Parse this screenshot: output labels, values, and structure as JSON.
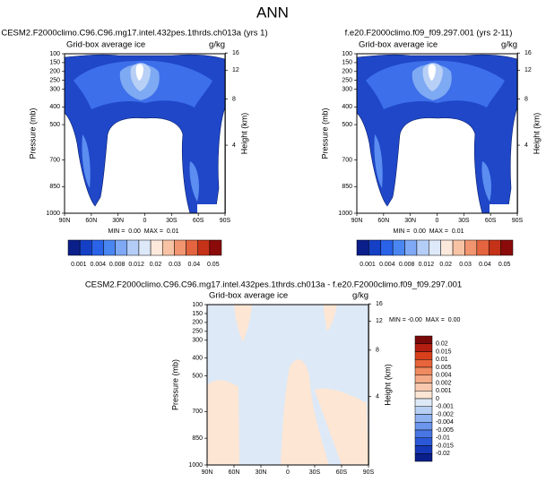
{
  "title": "ANN",
  "chart_data": [
    {
      "type": "contour",
      "title": "CESM2.F2000climo.C96.C96.mg17.intel.432pes.1thrds.ch013a (yrs 1)",
      "subtitle": "Grid-box average ice",
      "units": "g/kg",
      "ylabel": "Pressure (mb)",
      "y2label": "Height (km)",
      "xlim": [
        90,
        -90
      ],
      "xticks": [
        {
          "value": 90,
          "label": "90N"
        },
        {
          "value": 60,
          "label": "60N"
        },
        {
          "value": 30,
          "label": "30N"
        },
        0,
        {
          "value": -30,
          "label": "30S"
        },
        {
          "value": -60,
          "label": "60S"
        },
        {
          "value": -90,
          "label": "90S"
        }
      ],
      "ylim": [
        1000,
        100
      ],
      "yticks": [
        100,
        150,
        200,
        250,
        300,
        400,
        500,
        700,
        850,
        1000
      ],
      "y2lim": [
        0.1,
        16.2
      ],
      "y2ticks": [
        4,
        8,
        12,
        16
      ],
      "stats": "MIN =  0.00  MAX =  0.01",
      "colorbar": {
        "orientation": "horizontal",
        "colors": [
          "#0a1f8a",
          "#1540c6",
          "#2a62e8",
          "#4a86f2",
          "#7fa9f5",
          "#b4cdf7",
          "#dde8f8",
          "#fce9dc",
          "#f8c3a5",
          "#f19570",
          "#e3643f",
          "#c53218",
          "#8b0a0a"
        ],
        "labels": [
          0.001,
          0.004,
          0.008,
          0.012,
          0.02,
          0.03,
          0.04,
          0.05
        ]
      }
    },
    {
      "type": "contour",
      "title": "f.e20.F2000climo.f09_f09.297.001 (yrs 2-11)",
      "subtitle": "Grid-box average ice",
      "units": "g/kg",
      "ylabel": "Pressure (mb)",
      "y2label": "Height (km)",
      "xlim": [
        90,
        -90
      ],
      "xticks": [
        {
          "value": 90,
          "label": "90N"
        },
        {
          "value": 60,
          "label": "60N"
        },
        {
          "value": 30,
          "label": "30N"
        },
        0,
        {
          "value": -30,
          "label": "30S"
        },
        {
          "value": -60,
          "label": "60S"
        },
        {
          "value": -90,
          "label": "90S"
        }
      ],
      "ylim": [
        1000,
        100
      ],
      "yticks": [
        100,
        150,
        200,
        250,
        300,
        400,
        500,
        700,
        850,
        1000
      ],
      "y2lim": [
        0.1,
        16.2
      ],
      "y2ticks": [
        4,
        8,
        12,
        16
      ],
      "stats": "MIN =  0.00  MAX =  0.01",
      "colorbar": {
        "orientation": "horizontal",
        "colors": [
          "#0a1f8a",
          "#1540c6",
          "#2a62e8",
          "#4a86f2",
          "#7fa9f5",
          "#b4cdf7",
          "#dde8f8",
          "#fce9dc",
          "#f8c3a5",
          "#f19570",
          "#e3643f",
          "#c53218",
          "#8b0a0a"
        ],
        "labels": [
          0.001,
          0.004,
          0.008,
          0.012,
          0.02,
          0.03,
          0.04,
          0.05
        ]
      }
    },
    {
      "type": "contour",
      "title": "CESM2.F2000climo.C96.C96.mg17.intel.432pes.1thrds.ch013a - f.e20.F2000climo.f09_f09.297.001",
      "subtitle": "Grid-box average ice",
      "units": "g/kg",
      "ylabel": "Pressure (mb)",
      "y2label": "Height (km)",
      "xlim": [
        90,
        -90
      ],
      "xticks": [
        {
          "value": 90,
          "label": "90N"
        },
        {
          "value": 60,
          "label": "60N"
        },
        {
          "value": 30,
          "label": "30N"
        },
        0,
        {
          "value": -30,
          "label": "30S"
        },
        {
          "value": -60,
          "label": "60S"
        },
        {
          "value": -90,
          "label": "90S"
        }
      ],
      "ylim": [
        1000,
        100
      ],
      "yticks": [
        100,
        150,
        200,
        250,
        300,
        400,
        500,
        700,
        850,
        1000
      ],
      "y2lim": [
        0.1,
        16.2
      ],
      "y2ticks": [
        4,
        8,
        12,
        16
      ],
      "stats": "MIN = -0.00  MAX =  0.00",
      "colorbar": {
        "orientation": "vertical",
        "colors": [
          "#7a0a0a",
          "#b41e10",
          "#d8401c",
          "#e8643a",
          "#f08a60",
          "#f4ab88",
          "#f8c9ae",
          "#fde6d4",
          "#dde9f6",
          "#b8d0f3",
          "#8fb3f0",
          "#6c96ec",
          "#4876e4",
          "#2a58d8",
          "#1638b8",
          "#0a1f8a"
        ],
        "labels": [
          0.02,
          0.015,
          0.01,
          0.005,
          0.004,
          0.002,
          0.001,
          0,
          -0.001,
          -0.002,
          -0.004,
          -0.005,
          -0.01,
          -0.015,
          -0.02
        ]
      }
    }
  ]
}
